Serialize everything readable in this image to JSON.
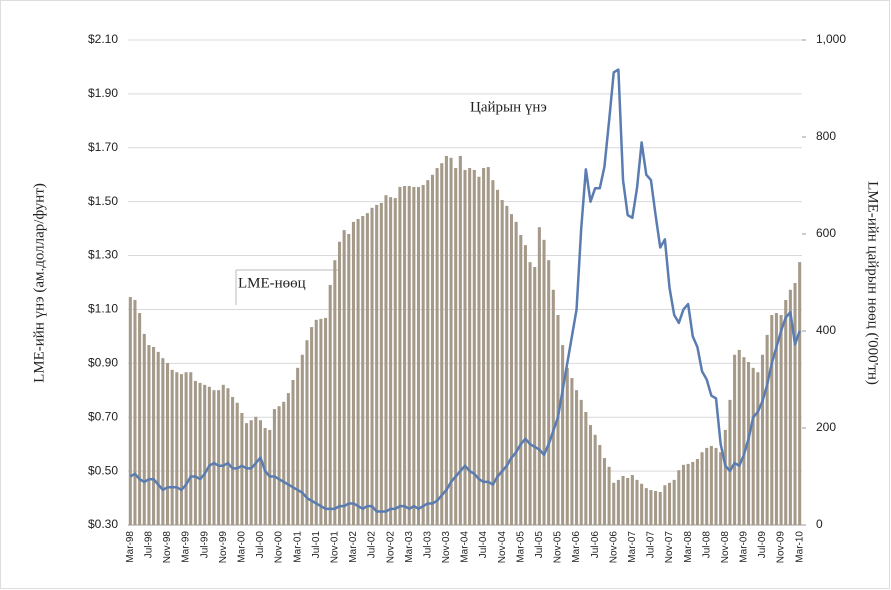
{
  "chart_data": {
    "type": "bar",
    "categories": [
      "Mar-98",
      null,
      null,
      null,
      "Jul-98",
      null,
      null,
      null,
      "Nov-98",
      null,
      null,
      null,
      "Mar-99",
      null,
      null,
      null,
      "Jul-99",
      null,
      null,
      null,
      "Nov-99",
      null,
      null,
      null,
      "Mar-00",
      null,
      null,
      null,
      "Jul-00",
      null,
      null,
      null,
      "Nov-00",
      null,
      null,
      null,
      "Mar-01",
      null,
      null,
      null,
      "Jul-01",
      null,
      null,
      null,
      "Nov-01",
      null,
      null,
      null,
      "Mar-02",
      null,
      null,
      null,
      "Jul-02",
      null,
      null,
      null,
      "Nov-02",
      null,
      null,
      null,
      "Mar-03",
      null,
      null,
      null,
      "Jul-03",
      null,
      null,
      null,
      "Nov-03",
      null,
      null,
      null,
      "Mar-04",
      null,
      null,
      null,
      "Jul-04",
      null,
      null,
      null,
      "Nov-04",
      null,
      null,
      null,
      "Mar-05",
      null,
      null,
      null,
      "Jul-05",
      null,
      null,
      null,
      "Nov-05",
      null,
      null,
      null,
      "Mar-06",
      null,
      null,
      null,
      "Jul-06",
      null,
      null,
      null,
      "Nov-06",
      null,
      null,
      null,
      "Mar-07",
      null,
      null,
      null,
      "Jul-07",
      null,
      null,
      null,
      "Nov-07",
      null,
      null,
      null,
      "Mar-08",
      null,
      null,
      null,
      "Jul-08",
      null,
      null,
      null,
      "Nov-08",
      null,
      null,
      null,
      "Mar-09",
      null,
      null,
      null,
      "Jul-09",
      null,
      null,
      null,
      "Nov-09",
      null,
      null,
      null,
      "Mar-10"
    ],
    "series": [
      {
        "name": "LME-нөөц",
        "type": "bar",
        "axis": "y2",
        "color": "#a59a89",
        "values": [
          470,
          464,
          437,
          394,
          371,
          367,
          357,
          344,
          334,
          320,
          315,
          311,
          315,
          315,
          297,
          293,
          289,
          285,
          278,
          278,
          289,
          282,
          264,
          252,
          231,
          210,
          216,
          223,
          216,
          200,
          196,
          239,
          245,
          254,
          272,
          299,
          324,
          351,
          381,
          408,
          423,
          425,
          427,
          495,
          546,
          584,
          608,
          600,
          625,
          631,
          637,
          643,
          654,
          660,
          664,
          680,
          676,
          674,
          697,
          699,
          699,
          697,
          697,
          701,
          711,
          722,
          736,
          746,
          761,
          757,
          736,
          761,
          732,
          736,
          732,
          718,
          736,
          738,
          711,
          691,
          670,
          658,
          641,
          625,
          598,
          577,
          542,
          532,
          614,
          588,
          546,
          485,
          433,
          371,
          324,
          303,
          278,
          258,
          233,
          206,
          186,
          165,
          138,
          120,
          87,
          93,
          101,
          97,
          103,
          93,
          85,
          76,
          72,
          70,
          68,
          82,
          87,
          93,
          113,
          124,
          126,
          130,
          136,
          150,
          159,
          163,
          159,
          150,
          196,
          258,
          351,
          361,
          346,
          336,
          324,
          315,
          351,
          392,
          433,
          437,
          433,
          464,
          485,
          499,
          542
        ]
      },
      {
        "name": "Цайрын үнэ",
        "type": "line",
        "color": "#5a7cb0",
        "values": [
          0.48,
          0.49,
          0.47,
          0.46,
          0.47,
          0.47,
          0.45,
          0.43,
          0.44,
          0.44,
          0.44,
          0.43,
          0.45,
          0.48,
          0.48,
          0.47,
          0.49,
          0.52,
          0.53,
          0.52,
          0.52,
          0.53,
          0.51,
          0.51,
          0.52,
          0.51,
          0.51,
          0.53,
          0.55,
          0.5,
          0.48,
          0.48,
          0.47,
          0.46,
          0.45,
          0.44,
          0.43,
          0.42,
          0.4,
          0.39,
          0.38,
          0.37,
          0.36,
          0.36,
          0.36,
          0.37,
          0.37,
          0.38,
          0.38,
          0.37,
          0.36,
          0.37,
          0.37,
          0.35,
          0.35,
          0.35,
          0.36,
          0.36,
          0.37,
          0.37,
          0.36,
          0.37,
          0.36,
          0.37,
          0.38,
          0.38,
          0.39,
          0.41,
          0.43,
          0.46,
          0.48,
          0.5,
          0.52,
          0.5,
          0.49,
          0.47,
          0.46,
          0.46,
          0.45,
          0.48,
          0.5,
          0.52,
          0.55,
          0.57,
          0.6,
          0.62,
          0.6,
          0.59,
          0.58,
          0.56,
          0.6,
          0.65,
          0.7,
          0.8,
          0.9,
          1.0,
          1.1,
          1.4,
          1.62,
          1.5,
          1.55,
          1.55,
          1.63,
          1.8,
          1.98,
          1.99,
          1.58,
          1.45,
          1.44,
          1.55,
          1.72,
          1.6,
          1.58,
          1.45,
          1.33,
          1.36,
          1.18,
          1.08,
          1.05,
          1.1,
          1.12,
          1.0,
          0.96,
          0.87,
          0.84,
          0.78,
          0.77,
          0.6,
          0.52,
          0.5,
          0.53,
          0.52,
          0.56,
          0.62,
          0.7,
          0.72,
          0.76,
          0.82,
          0.9,
          0.96,
          1.02,
          1.07,
          1.09,
          0.97,
          1.02
        ]
      }
    ],
    "y_label": "LME-ийн үнэ (ам.доллар/фунт)",
    "y2_label": "LME-ийн цайрын нөөц ('000'тн)",
    "ylim": [
      0.3,
      2.1
    ],
    "yticks": [
      {
        "value": 0.3,
        "label": "$0.30"
      },
      {
        "value": 0.5,
        "label": "$0.50"
      },
      {
        "value": 0.7,
        "label": "$0.70"
      },
      {
        "value": 0.9,
        "label": "$0.90"
      },
      {
        "value": 1.1,
        "label": "$1.10"
      },
      {
        "value": 1.3,
        "label": "$1.30"
      },
      {
        "value": 1.5,
        "label": "$1.50"
      },
      {
        "value": 1.7,
        "label": "$1.70"
      },
      {
        "value": 1.9,
        "label": "$1.90"
      },
      {
        "value": 2.1,
        "label": "$2.10"
      }
    ],
    "y2lim": [
      0,
      1000
    ],
    "y2ticks": [
      0,
      200,
      400,
      600,
      800,
      {
        "value": 1000,
        "label": "1,000"
      }
    ],
    "grid": true
  }
}
